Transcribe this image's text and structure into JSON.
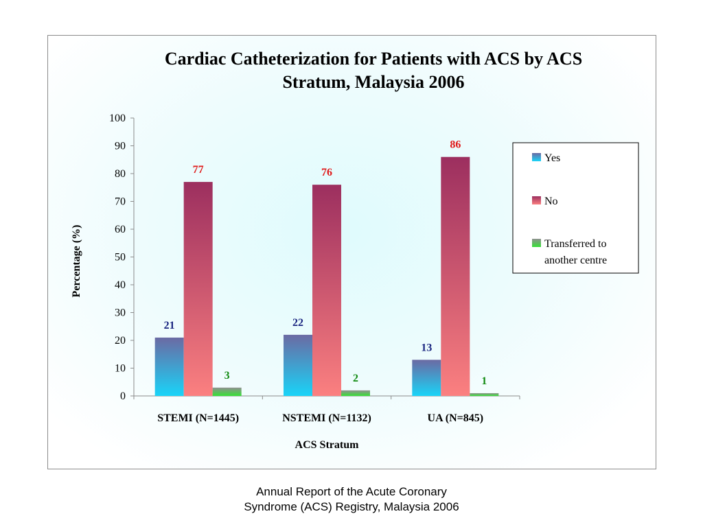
{
  "chart_data": {
    "type": "bar",
    "title_lines": [
      "Cardiac Catheterization for Patients with ACS by ACS",
      "Stratum, Malaysia 2006"
    ],
    "xlabel": "ACS Stratum",
    "ylabel": "Percentage (%)",
    "ylim": [
      0,
      100
    ],
    "yticks": [
      0,
      10,
      20,
      30,
      40,
      50,
      60,
      70,
      80,
      90,
      100
    ],
    "categories": [
      "STEMI (N=1445)",
      "NSTEMI (N=1132)",
      "UA (N=845)"
    ],
    "series": [
      {
        "name": "Yes",
        "values": [
          21,
          22,
          13
        ],
        "color_top": "#6b6aa3",
        "color_bottom": "#19d4f8",
        "label_color": "#1a2580"
      },
      {
        "name": "No",
        "values": [
          77,
          76,
          86
        ],
        "color_top": "#9c2f5f",
        "color_bottom": "#fb8080",
        "label_color": "#e01818"
      },
      {
        "name": "Transferred to another centre",
        "values": [
          3,
          2,
          1
        ],
        "color_top": "#909090",
        "color_bottom": "#35e135",
        "label_color": "#118a11"
      }
    ],
    "data_labels": [
      [
        "21",
        "22",
        "13"
      ],
      [
        "77",
        "76",
        "86"
      ],
      [
        "3",
        "2",
        "1"
      ]
    ],
    "legend_lines": [
      [
        "Yes"
      ],
      [
        "No"
      ],
      [
        "Transferred to",
        "another centre"
      ]
    ],
    "legend_position": "right",
    "grid": false
  },
  "caption": {
    "line1": "Annual Report of the Acute Coronary",
    "line2": "Syndrome (ACS) Registry, Malaysia 2006"
  }
}
